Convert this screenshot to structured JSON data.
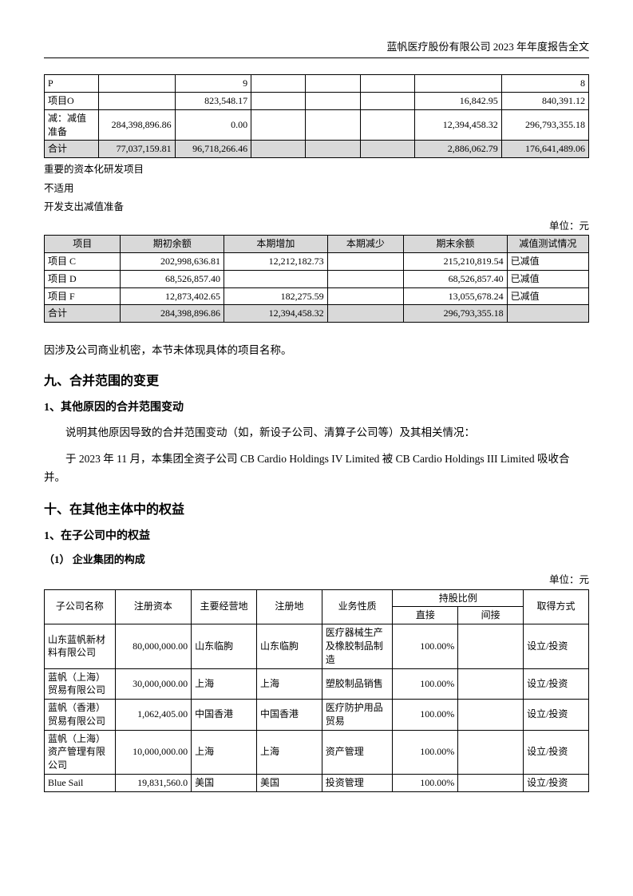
{
  "header": "蓝帆医疗股份有限公司 2023 年年度报告全文",
  "table1": {
    "rows": [
      [
        "P",
        "",
        "9",
        "",
        "",
        "",
        "",
        "8"
      ],
      [
        "项目O",
        "",
        "823,548.17",
        "",
        "",
        "",
        "16,842.95",
        "840,391.12"
      ],
      [
        "减：减值准备",
        "284,398,896.86",
        "0.00",
        "",
        "",
        "",
        "12,394,458.32",
        "296,793,355.18"
      ],
      [
        "合计",
        "77,037,159.81",
        "96,718,266.46",
        "",
        "",
        "",
        "2,886,062.79",
        "176,641,489.06"
      ]
    ],
    "col_widths": [
      "10%",
      "14%",
      "14%",
      "10%",
      "10%",
      "10%",
      "16%",
      "16%"
    ]
  },
  "notes1": [
    "重要的资本化研发项目",
    "不适用",
    "开发支出减值准备"
  ],
  "unit_label": "单位：元",
  "table2": {
    "headers": [
      "项目",
      "期初余额",
      "本期增加",
      "本期减少",
      "期末余额",
      "减值测试情况"
    ],
    "rows": [
      [
        "项目 C",
        "202,998,636.81",
        "12,212,182.73",
        "",
        "215,210,819.54",
        "已减值"
      ],
      [
        "项目 D",
        "68,526,857.40",
        "",
        "",
        "68,526,857.40",
        "已减值"
      ],
      [
        "项目 F",
        "12,873,402.65",
        "182,275.59",
        "",
        "13,055,678.24",
        "已减值"
      ],
      [
        "合计",
        "284,398,896.86",
        "12,394,458.32",
        "",
        "296,793,355.18",
        ""
      ]
    ],
    "col_widths": [
      "14%",
      "19%",
      "19%",
      "14%",
      "19%",
      "15%"
    ]
  },
  "confidential_note": "因涉及公司商业机密，本节未体现具体的项目名称。",
  "section9_title": "九、合并范围的变更",
  "section9_sub1": "1、其他原因的合并范围变动",
  "section9_p1": "说明其他原因导致的合并范围变动（如，新设子公司、清算子公司等）及其相关情况：",
  "section9_p2": "于 2023 年 11 月，本集团全资子公司 CB Cardio Holdings IV Limited 被 CB Cardio Holdings III Limited 吸收合并。",
  "section10_title": "十、在其他主体中的权益",
  "section10_sub1": "1、在子公司中的权益",
  "section10_sub2": "（1） 企业集团的构成",
  "table3": {
    "headers_row1": [
      "子公司名称",
      "注册资本",
      "主要经营地",
      "注册地",
      "业务性质",
      "持股比例",
      "取得方式"
    ],
    "headers_row2": [
      "直接",
      "间接"
    ],
    "rows": [
      [
        "山东蓝帆新材料有限公司",
        "80,000,000.00",
        "山东临朐",
        "山东临朐",
        "医疗器械生产及橡胶制品制造",
        "100.00%",
        "",
        "设立/投资"
      ],
      [
        "蓝帆（上海）贸易有限公司",
        "30,000,000.00",
        "上海",
        "上海",
        "塑胶制品销售",
        "100.00%",
        "",
        "设立/投资"
      ],
      [
        "蓝帆（香港）贸易有限公司",
        "1,062,405.00",
        "中国香港",
        "中国香港",
        "医疗防护用品贸易",
        "100.00%",
        "",
        "设立/投资"
      ],
      [
        "蓝帆（上海）资产管理有限公司",
        "10,000,000.00",
        "上海",
        "上海",
        "资产管理",
        "100.00%",
        "",
        "设立/投资"
      ],
      [
        "Blue Sail",
        "19,831,560.0",
        "美国",
        "美国",
        "投资管理",
        "100.00%",
        "",
        "设立/投资"
      ]
    ],
    "col_widths": [
      "13%",
      "14%",
      "12%",
      "12%",
      "13%",
      "12%",
      "12%",
      "12%"
    ]
  }
}
